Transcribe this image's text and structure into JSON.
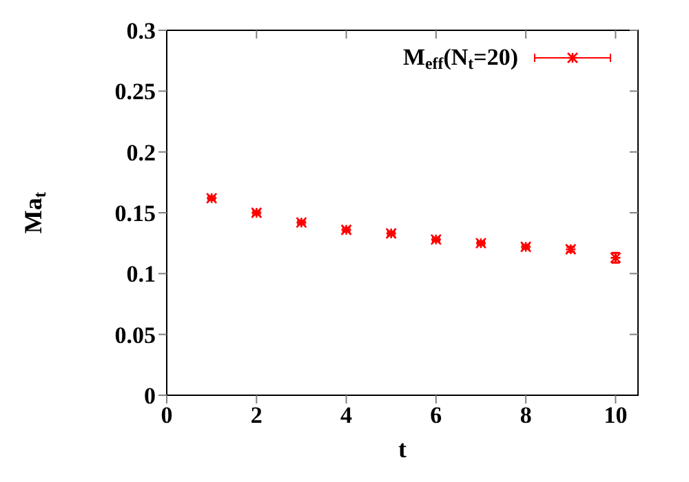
{
  "chart_data": {
    "type": "scatter",
    "xlabel": "t",
    "ylabel": "Ma$_{t}$",
    "x": [
      1,
      2,
      3,
      4,
      5,
      6,
      7,
      8,
      9,
      10
    ],
    "series": [
      {
        "name": "M$_{eff}$(N$_{t}$=20)",
        "color": "#ff0000",
        "values": [
          0.162,
          0.15,
          0.142,
          0.136,
          0.133,
          0.128,
          0.125,
          0.122,
          0.12,
          0.113
        ],
        "errors": [
          0.0015,
          0.0015,
          0.0015,
          0.0015,
          0.0015,
          0.0015,
          0.0015,
          0.0015,
          0.002,
          0.004
        ]
      }
    ],
    "xlim": [
      0,
      10.5
    ],
    "xticks": [
      0,
      2,
      4,
      6,
      8,
      10
    ],
    "ylim": [
      0,
      0.3
    ],
    "yticks": [
      0,
      0.05,
      0.1,
      0.15,
      0.2,
      0.25,
      0.3
    ],
    "legend": "top right",
    "marker": "cross",
    "grid": false
  }
}
